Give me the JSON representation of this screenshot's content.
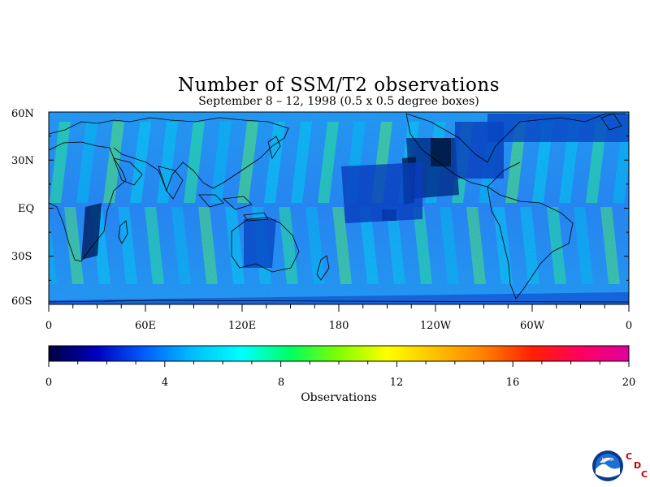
{
  "title": "Number of SSM/T2 observations",
  "subtitle": "September 8 – 12, 1998 (0.5 x 0.5 degree boxes)",
  "lat_labels": [
    "60N",
    "30N",
    "EQ",
    "30S",
    "60S"
  ],
  "lon_labels": [
    "0",
    "60E",
    "120E",
    "180",
    "120W",
    "60W",
    "0"
  ],
  "colorbar": {
    "ticks": [
      "0",
      "4",
      "8",
      "12",
      "16",
      "20"
    ],
    "label": "Observations",
    "range": [
      0,
      20
    ],
    "colors": [
      "#000040",
      "#0000c0",
      "#0060ff",
      "#00c0ff",
      "#00ffff",
      "#00ff60",
      "#80ff00",
      "#ffff00",
      "#ffc000",
      "#ff8000",
      "#ff2000",
      "#ff0060",
      "#e000a0"
    ]
  },
  "logo": {
    "noaa_text": "NOAA",
    "cdc_letters": [
      "C",
      "D",
      "C"
    ]
  }
}
